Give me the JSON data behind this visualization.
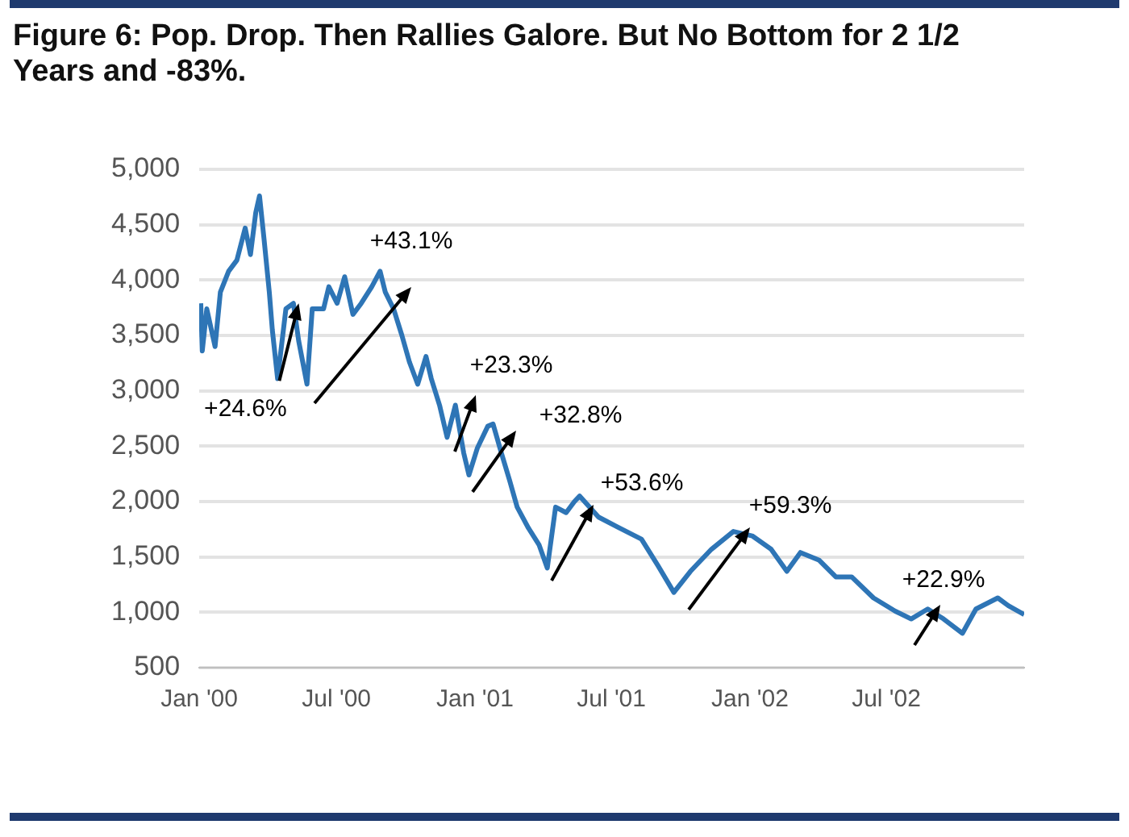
{
  "chart_data": {
    "type": "line",
    "title": "Figure 6: Pop. Drop. Then Rallies Galore. But No Bottom for 2 1/2 Years and -83%.",
    "x": [
      "2000-01-03",
      "2000-01-05",
      "2000-01-11",
      "2000-01-22",
      "2000-01-29",
      "2000-02-09",
      "2000-02-20",
      "2000-03-02",
      "2000-03-09",
      "2000-03-16",
      "2000-03-21",
      "2000-03-27",
      "2000-04-03",
      "2000-04-07",
      "2000-04-14",
      "2000-04-25",
      "2000-05-05",
      "2000-05-12",
      "2000-05-23",
      "2000-05-30",
      "2000-06-14",
      "2000-06-21",
      "2000-07-02",
      "2000-07-12",
      "2000-07-23",
      "2000-08-03",
      "2000-08-17",
      "2000-08-28",
      "2000-09-04",
      "2000-09-15",
      "2000-09-26",
      "2000-10-06",
      "2000-10-17",
      "2000-10-28",
      "2000-11-04",
      "2000-11-15",
      "2000-11-25",
      "2000-12-06",
      "2000-12-17",
      "2000-12-24",
      "2001-01-04",
      "2001-01-18",
      "2001-01-25",
      "2001-02-05",
      "2001-02-16",
      "2001-02-26",
      "2001-03-13",
      "2001-03-27",
      "2001-04-07",
      "2001-04-18",
      "2001-05-02",
      "2001-05-13",
      "2001-05-20",
      "2001-06-14",
      "2001-07-12",
      "2001-08-10",
      "2001-09-01",
      "2001-09-22",
      "2001-10-14",
      "2001-11-11",
      "2001-12-10",
      "2002-01-04",
      "2002-01-29",
      "2002-02-19",
      "2002-03-09",
      "2002-04-03",
      "2002-04-25",
      "2002-05-16",
      "2002-06-14",
      "2002-07-13",
      "2002-08-03",
      "2002-08-25",
      "2002-09-15",
      "2002-10-10",
      "2002-10-28",
      "2002-11-26",
      "2002-12-10",
      "2002-12-31"
    ],
    "series": [
      {
        "color": "#2e75b6",
        "values": [
          3790,
          3360,
          3740,
          3400,
          3890,
          4080,
          4180,
          4470,
          4230,
          4610,
          4760,
          4370,
          3890,
          3550,
          3110,
          3740,
          3790,
          3450,
          3060,
          3740,
          3740,
          3940,
          3790,
          4030,
          3690,
          3790,
          3940,
          4080,
          3890,
          3740,
          3500,
          3260,
          3060,
          3310,
          3110,
          2870,
          2580,
          2870,
          2440,
          2240,
          2480,
          2680,
          2700,
          2440,
          2190,
          1950,
          1760,
          1610,
          1400,
          1950,
          1900,
          2000,
          2050,
          1860,
          1760,
          1660,
          1420,
          1180,
          1370,
          1570,
          1730,
          1690,
          1570,
          1370,
          1540,
          1470,
          1320,
          1320,
          1130,
          1010,
          940,
          1030,
          940,
          810,
          1030,
          1130,
          1060,
          980
        ]
      }
    ],
    "xlim": [
      "2000-01-01",
      "2002-12-31"
    ],
    "xticks": [
      {
        "value": "2000-01-01",
        "label": "Jan '00"
      },
      {
        "value": "2000-07-01",
        "label": "Jul '00"
      },
      {
        "value": "2001-01-01",
        "label": "Jan '01"
      },
      {
        "value": "2001-07-01",
        "label": "Jul '01"
      },
      {
        "value": "2002-01-01",
        "label": "Jan '02"
      },
      {
        "value": "2002-07-01",
        "label": "Jul '02"
      }
    ],
    "ylim": [
      500,
      5000
    ],
    "yticks": [
      {
        "value": 500,
        "label": "500"
      },
      {
        "value": 1000,
        "label": "1,000"
      },
      {
        "value": 1500,
        "label": "1,500"
      },
      {
        "value": 2000,
        "label": "2,000"
      },
      {
        "value": 2500,
        "label": "2,500"
      },
      {
        "value": 3000,
        "label": "3,000"
      },
      {
        "value": 3500,
        "label": "3,500"
      },
      {
        "value": 4000,
        "label": "4,000"
      },
      {
        "value": 4500,
        "label": "4,500"
      },
      {
        "value": 5000,
        "label": "5,000"
      }
    ],
    "grid": "y",
    "legend": false,
    "marker": "none",
    "line_style": "solid",
    "annotations": [
      {
        "text": "+24.6%",
        "x": "2000-05-12",
        "y": 3790
      },
      "+43.1%",
      "+23.3%",
      "+32.8%",
      "+53.6%",
      "+59.3%",
      "+22.9%"
    ]
  }
}
